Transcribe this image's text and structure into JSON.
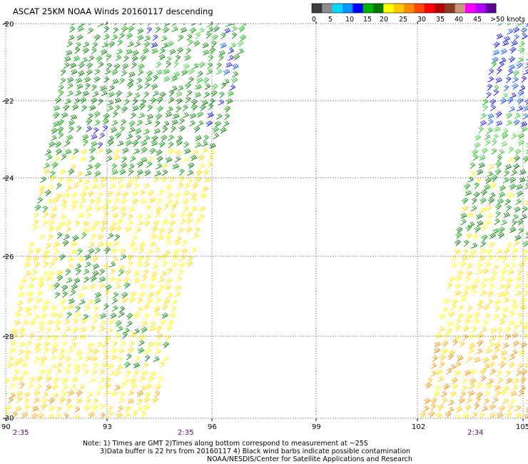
{
  "title": "ASCAT 25KM NOAA Winds 20160117 descending",
  "legend": {
    "colors": [
      "#3c3c3c",
      "#8c8c8c",
      "#00d7ff",
      "#0096ff",
      "#0000ff",
      "#00b400",
      "#007800",
      "#ffff00",
      "#ffc800",
      "#ff8c00",
      "#ff4600",
      "#ff0000",
      "#b40000",
      "#8c3c1e",
      "#c8967a",
      "#ff00ff",
      "#b400ff",
      "#5a0096"
    ],
    "labels": [
      "0",
      "5",
      "10",
      "15",
      "20",
      "25",
      "30",
      "35",
      "40",
      "45",
      ">50 knots"
    ]
  },
  "map": {
    "lon_range": [
      90,
      105
    ],
    "lat_range": [
      -30,
      -20
    ],
    "lat_ticks": [
      "-20",
      "-22",
      "-24",
      "-26",
      "-28",
      "-30"
    ],
    "lon_ticks": [
      "90",
      "93",
      "96",
      "99",
      "102",
      "105"
    ],
    "times": [
      "2:35",
      "2:35",
      "2:34"
    ],
    "grid": true
  },
  "notes": {
    "line1": "Note: 1) Times are GMT 2)Times along bottom correspond to measurement at ~25S",
    "line2": "3)Data buffer is 22 hrs from 20160117 4) Black wind barbs indicate possible contamination",
    "line3": "NOAA/NESDIS/Center for Satellite Applications and Research"
  }
}
